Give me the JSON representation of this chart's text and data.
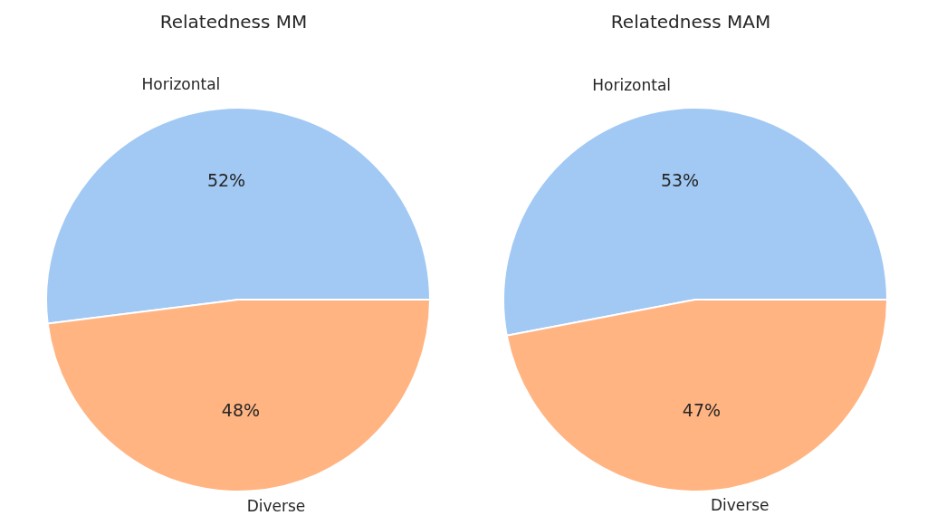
{
  "chart_data": [
    {
      "type": "pie",
      "title": "Relatedness MM",
      "categories": [
        "Horizontal",
        "Diverse"
      ],
      "values": [
        52,
        48
      ],
      "colors": [
        "#a1c9f4",
        "#ffb482"
      ],
      "value_labels": [
        "52%",
        "48%"
      ]
    },
    {
      "type": "pie",
      "title": "Relatedness MAM",
      "categories": [
        "Horizontal",
        "Diverse"
      ],
      "values": [
        53,
        47
      ],
      "colors": [
        "#a1c9f4",
        "#ffb482"
      ],
      "value_labels": [
        "53%",
        "47%"
      ]
    }
  ]
}
